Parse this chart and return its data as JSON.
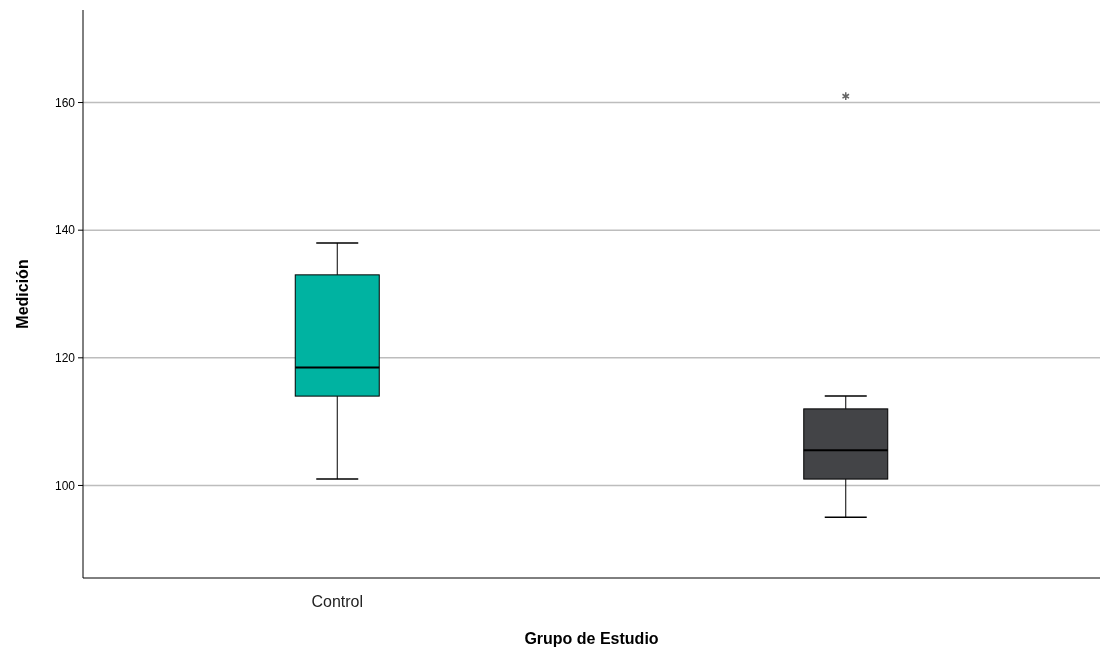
{
  "chart_data": {
    "type": "box",
    "xlabel": "Grupo de Estudio",
    "ylabel": "Medición",
    "categories": [
      "Control",
      null
    ],
    "colors": [
      "#00b3a1",
      "#434447"
    ],
    "boxes": [
      {
        "low": 101,
        "q1": 114,
        "median": 118.5,
        "q3": 133,
        "high": 138
      },
      {
        "low": 95,
        "q1": 101,
        "median": 105.5,
        "q3": 112,
        "high": 114,
        "outliers": [
          161
        ]
      }
    ],
    "ylim": [
      85.5,
      174.5
    ],
    "yticks": [
      100,
      120,
      140,
      160
    ],
    "grid": "y"
  }
}
